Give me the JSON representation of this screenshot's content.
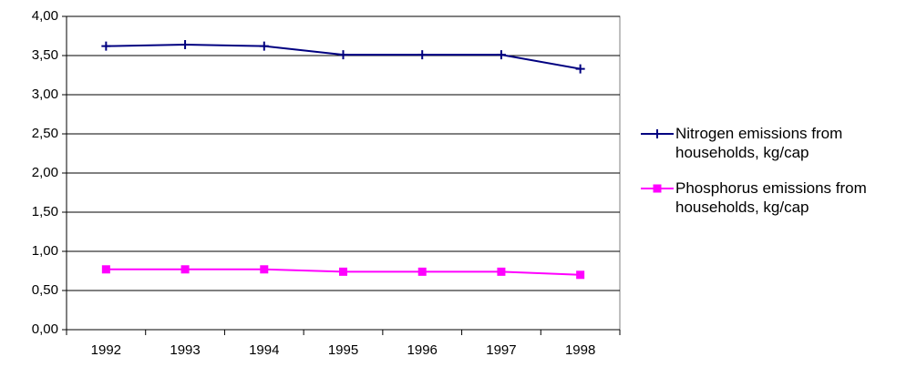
{
  "chart_data": {
    "type": "line",
    "categories": [
      "1992",
      "1993",
      "1994",
      "1995",
      "1996",
      "1997",
      "1998"
    ],
    "series": [
      {
        "name": "Nitrogen emissions from households, kg/cap",
        "color": "#000080",
        "marker": "plus",
        "values": [
          3.62,
          3.64,
          3.62,
          3.51,
          3.51,
          3.51,
          3.33
        ]
      },
      {
        "name": "Phosphorus emissions from households, kg/cap",
        "color": "#ff00ff",
        "marker": "square",
        "values": [
          0.77,
          0.77,
          0.77,
          0.74,
          0.74,
          0.74,
          0.7
        ]
      }
    ],
    "ylim": [
      0,
      4
    ],
    "yticks": [
      {
        "value": 0,
        "label": "0,00"
      },
      {
        "value": 0.5,
        "label": "0,50"
      },
      {
        "value": 1,
        "label": "1,00"
      },
      {
        "value": 1.5,
        "label": "1,50"
      },
      {
        "value": 2,
        "label": "2,00"
      },
      {
        "value": 2.5,
        "label": "2,50"
      },
      {
        "value": 3,
        "label": "3,00"
      },
      {
        "value": 3.5,
        "label": "3,50"
      },
      {
        "value": 4,
        "label": "4,00"
      }
    ],
    "grid": true,
    "legend": "right"
  }
}
